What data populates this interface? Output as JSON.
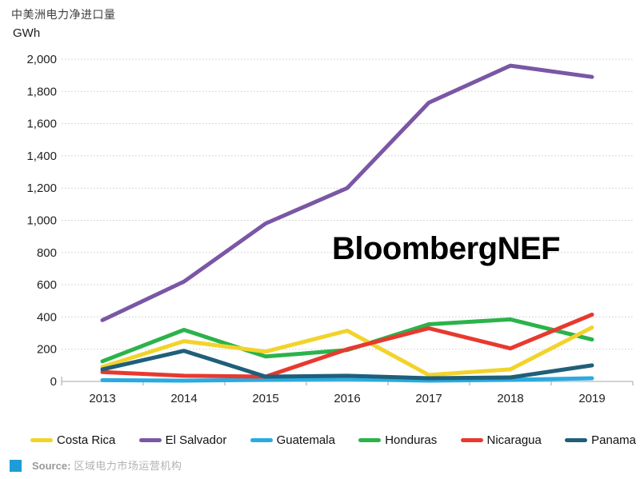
{
  "title": "中美洲电力净进口量",
  "unit_label": "GWh",
  "watermark": "BloombergNEF",
  "source": {
    "label": "Source:",
    "text": "区域电力市场运营机构"
  },
  "colors": {
    "costa_rica": "#F2D32B",
    "el_salvador": "#7A57A5",
    "guatemala": "#29ABE2",
    "honduras": "#2BB34B",
    "nicaragua": "#E8392F",
    "panama": "#1F5F7A",
    "gridline": "#c9c9c9",
    "axis": "#b8b8b8",
    "tick_text": "#1f1f1f",
    "source_square": "#1E9CD8"
  },
  "chart_data": {
    "type": "line",
    "title": "中美洲电力净进口量",
    "ylabel": "GWh",
    "xlabel": "",
    "categories": [
      "2013",
      "2014",
      "2015",
      "2016",
      "2017",
      "2018",
      "2019"
    ],
    "series": [
      {
        "name": "Costa Rica",
        "color": "#F2D32B",
        "values": [
          90,
          250,
          185,
          315,
          40,
          75,
          335
        ]
      },
      {
        "name": "El Salvador",
        "color": "#7A57A5",
        "values": [
          380,
          620,
          980,
          1200,
          1730,
          1960,
          1890
        ]
      },
      {
        "name": "Guatemala",
        "color": "#29ABE2",
        "values": [
          8,
          5,
          10,
          15,
          5,
          10,
          20
        ]
      },
      {
        "name": "Honduras",
        "color": "#2BB34B",
        "values": [
          125,
          320,
          155,
          195,
          355,
          385,
          260
        ]
      },
      {
        "name": "Nicaragua",
        "color": "#E8392F",
        "values": [
          58,
          35,
          30,
          200,
          330,
          205,
          415
        ]
      },
      {
        "name": "Panama",
        "color": "#1F5F7A",
        "values": [
          75,
          190,
          30,
          35,
          20,
          25,
          100
        ]
      }
    ],
    "ylim": [
      0,
      2000
    ],
    "ytick_step": 200,
    "yticks": [
      "0",
      "200",
      "400",
      "600",
      "800",
      "1,000",
      "1,200",
      "1,400",
      "1,600",
      "1,800",
      "2,000"
    ],
    "grid": "horizontal-dashed",
    "legend_position": "bottom",
    "draw_order": [
      "El Salvador",
      "Honduras",
      "Costa Rica",
      "Guatemala",
      "Nicaragua",
      "Panama"
    ]
  }
}
